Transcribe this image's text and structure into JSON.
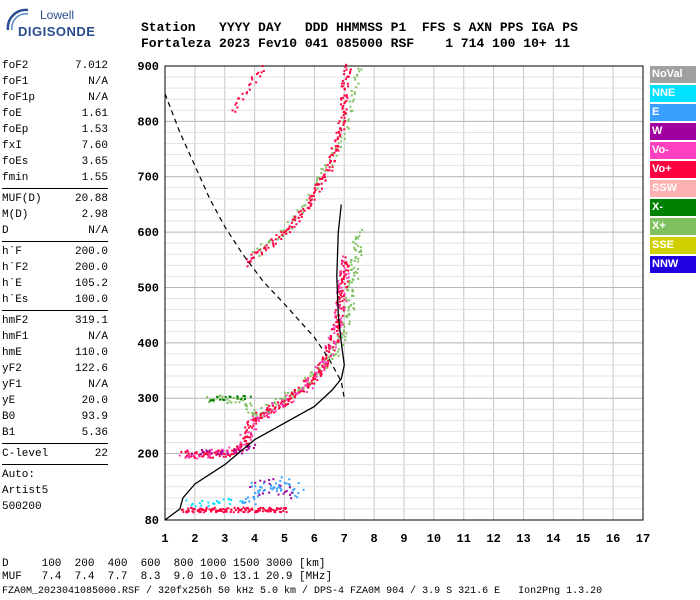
{
  "logo": {
    "line1": "Lowell",
    "line2": "DIGISONDE"
  },
  "header": {
    "row1": "Station   YYYY DAY   DDD HHMMSS P1  FFS S AXN PPS IGA PS",
    "row2": "Fortaleza 2023 Fev10 041 085000 RSF    1 714 100 10+ 11"
  },
  "params": [
    {
      "k": "foF2",
      "v": "7.012"
    },
    {
      "k": "foF1",
      "v": "N/A"
    },
    {
      "k": "foF1p",
      "v": "N/A"
    },
    {
      "k": "foE",
      "v": "1.61"
    },
    {
      "k": "foEp",
      "v": "1.53"
    },
    {
      "k": "fxI",
      "v": "7.60"
    },
    {
      "k": "foEs",
      "v": "3.65"
    },
    {
      "k": "fmin",
      "v": "1.55"
    },
    {
      "sep": true
    },
    {
      "k": "MUF(D)",
      "v": "20.88"
    },
    {
      "k": "M(D)",
      "v": "2.98"
    },
    {
      "k": "D",
      "v": "N/A"
    },
    {
      "sep": true
    },
    {
      "k": "h`F",
      "v": "200.0"
    },
    {
      "k": "h`F2",
      "v": "200.0"
    },
    {
      "k": "h`E",
      "v": "105.2"
    },
    {
      "k": "h`Es",
      "v": "100.0"
    },
    {
      "sep": true
    },
    {
      "k": "hmF2",
      "v": "319.1"
    },
    {
      "k": "hmF1",
      "v": "N/A"
    },
    {
      "k": "hmE",
      "v": "110.0"
    },
    {
      "k": "yF2",
      "v": "122.6"
    },
    {
      "k": "yF1",
      "v": "N/A"
    },
    {
      "k": "yE",
      "v": "20.0"
    },
    {
      "k": "B0",
      "v": "93.9"
    },
    {
      "k": "B1",
      "v": "5.36"
    },
    {
      "sep": true
    },
    {
      "k": "C-level",
      "v": "22"
    },
    {
      "sep": true
    }
  ],
  "auto": {
    "l1": "Auto:",
    "l2": "Artist5",
    "l3": "500200"
  },
  "legend": [
    {
      "label": "NoVal",
      "color": "#a0a0a0"
    },
    {
      "label": "NNE",
      "color": "#00e0ff"
    },
    {
      "label": "E",
      "color": "#3aa0ff"
    },
    {
      "label": "W",
      "color": "#a000a0"
    },
    {
      "label": "Vo-",
      "color": "#ff40c0"
    },
    {
      "label": "Vo+",
      "color": "#ff0040"
    },
    {
      "label": "SSW",
      "color": "#ffb0b0"
    },
    {
      "label": "X-",
      "color": "#008000"
    },
    {
      "label": "X+",
      "color": "#80c060"
    },
    {
      "label": "SSE",
      "color": "#d0d000"
    },
    {
      "label": "NNW",
      "color": "#2000e0"
    }
  ],
  "bottom": {
    "row1": "D     100  200  400  600  800 1000 1500 3000 [km]",
    "row2": "MUF   7.4  7.4  7.7  8.3  9.0 10.0 13.1 20.9 [MHz]"
  },
  "footer": "FZA0M_2023041085000.RSF / 320fx256h 50 kHz 5.0 km / DPS-4 FZA0M 904 / 3.9 S 321.6 E   Ion2Png 1.3.20",
  "chart_data": {
    "type": "scatter",
    "xlim": [
      1,
      17
    ],
    "ylim": [
      80,
      900
    ],
    "xticks": [
      1,
      2,
      3,
      4,
      5,
      6,
      7,
      8,
      9,
      10,
      11,
      12,
      13,
      14,
      15,
      16,
      17
    ],
    "yticks": [
      80,
      200,
      300,
      400,
      500,
      600,
      700,
      800,
      900
    ],
    "grid": true,
    "colors": {
      "vo_plus": "#ff0040",
      "vo_minus": "#ff40c0",
      "x_plus": "#80c060",
      "x_minus": "#008000",
      "e": "#3aa0ff",
      "w": "#a000a0",
      "nne": "#00e0ff"
    },
    "traces": [
      {
        "name": "Vo+",
        "points": [
          [
            1.6,
            200
          ],
          [
            2.0,
            200
          ],
          [
            2.5,
            200
          ],
          [
            3.0,
            202
          ],
          [
            3.3,
            205
          ],
          [
            3.6,
            215
          ],
          [
            3.8,
            250
          ],
          [
            4.0,
            265
          ],
          [
            4.5,
            280
          ],
          [
            5.0,
            295
          ],
          [
            5.5,
            315
          ],
          [
            6.0,
            340
          ],
          [
            6.3,
            365
          ],
          [
            6.6,
            400
          ],
          [
            6.8,
            450
          ],
          [
            6.9,
            500
          ],
          [
            7.0,
            550
          ]
        ]
      },
      {
        "name": "X+",
        "points": [
          [
            2.5,
            300
          ],
          [
            3.0,
            300
          ],
          [
            3.5,
            300
          ],
          [
            4.0,
            270
          ],
          [
            4.5,
            283
          ],
          [
            5.0,
            300
          ],
          [
            5.5,
            322
          ],
          [
            6.0,
            345
          ],
          [
            6.5,
            370
          ],
          [
            6.8,
            400
          ],
          [
            7.1,
            450
          ],
          [
            7.3,
            520
          ],
          [
            7.45,
            600
          ]
        ]
      },
      {
        "name": "Vo+ 2hop",
        "points": [
          [
            3.7,
            545
          ],
          [
            4.0,
            560
          ],
          [
            4.5,
            580
          ],
          [
            5.0,
            600
          ],
          [
            5.5,
            630
          ],
          [
            6.0,
            670
          ],
          [
            6.5,
            720
          ],
          [
            6.9,
            800
          ],
          [
            7.0,
            870
          ],
          [
            7.1,
            900
          ]
        ]
      },
      {
        "name": "X+ 2hop",
        "points": [
          [
            4.0,
            560
          ],
          [
            5.0,
            605
          ],
          [
            6.0,
            680
          ],
          [
            6.8,
            760
          ],
          [
            7.3,
            850
          ],
          [
            7.5,
            900
          ]
        ]
      },
      {
        "name": "Vo+ 3hop",
        "points": [
          [
            3.2,
            820
          ],
          [
            3.6,
            850
          ],
          [
            4.0,
            880
          ],
          [
            4.3,
            900
          ]
        ]
      },
      {
        "name": "Es",
        "points": [
          [
            1.6,
            100
          ],
          [
            2.0,
            100
          ],
          [
            2.5,
            100
          ],
          [
            3.0,
            100
          ],
          [
            3.5,
            100
          ],
          [
            4.0,
            100
          ],
          [
            4.5,
            100
          ],
          [
            5.0,
            100
          ]
        ]
      }
    ],
    "profile_solid": [
      [
        1.0,
        80
      ],
      [
        1.5,
        100
      ],
      [
        1.6,
        120
      ],
      [
        2.0,
        145
      ],
      [
        3.0,
        180
      ],
      [
        4.0,
        225
      ],
      [
        5.0,
        255
      ],
      [
        6.0,
        285
      ],
      [
        6.6,
        315
      ],
      [
        6.9,
        335
      ],
      [
        7.0,
        360
      ],
      [
        6.9,
        400
      ],
      [
        6.8,
        450
      ],
      [
        6.75,
        520
      ],
      [
        6.8,
        600
      ],
      [
        6.9,
        650
      ]
    ],
    "profile_dashed": [
      [
        1.0,
        850
      ],
      [
        1.5,
        780
      ],
      [
        2.0,
        720
      ],
      [
        2.5,
        660
      ],
      [
        3.0,
        610
      ],
      [
        3.6,
        560
      ],
      [
        4.3,
        510
      ],
      [
        5.0,
        470
      ],
      [
        5.5,
        440
      ],
      [
        6.0,
        410
      ],
      [
        6.5,
        370
      ],
      [
        6.9,
        330
      ],
      [
        7.0,
        300
      ]
    ]
  }
}
